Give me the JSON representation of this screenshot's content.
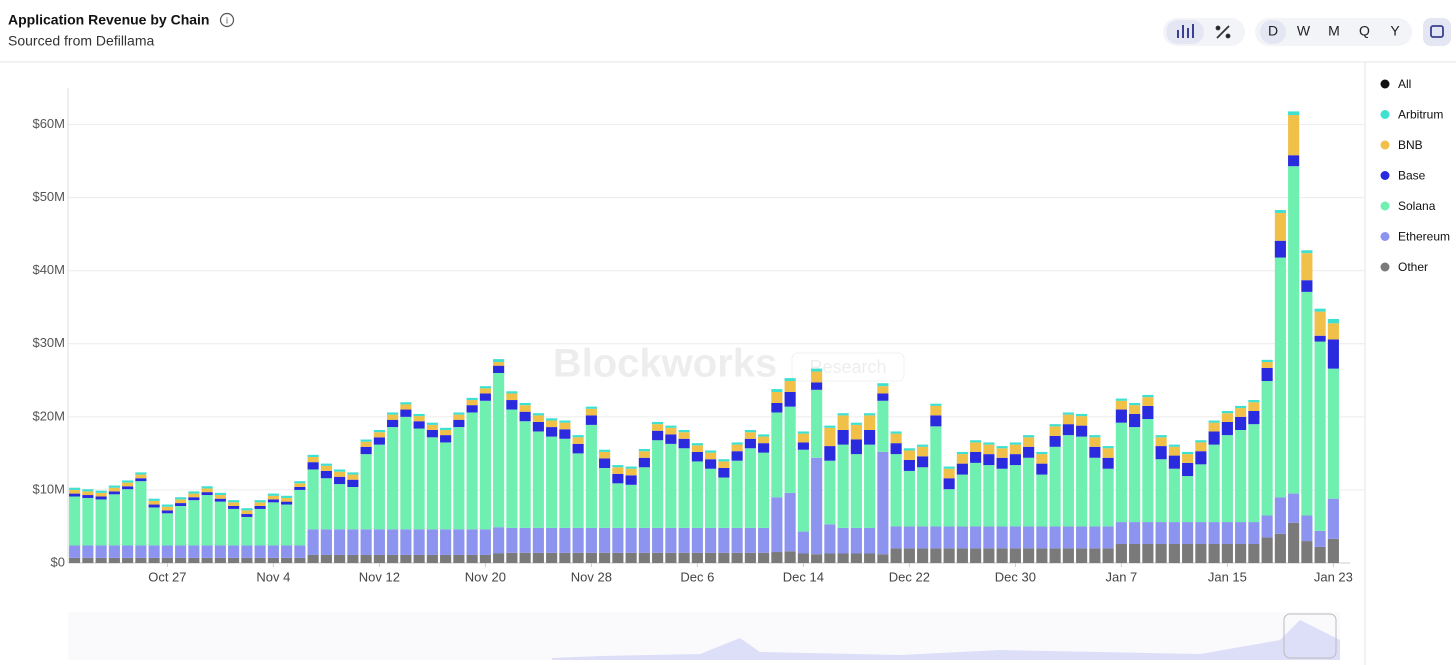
{
  "chart_data": {
    "type": "stacked_bar",
    "title": "Application Revenue by Chain",
    "subtitle": "Sourced from Defillama",
    "categories": [
      null,
      null,
      null,
      null,
      null,
      null,
      null,
      "Oct 27",
      null,
      null,
      null,
      null,
      null,
      null,
      null,
      "Nov 4",
      null,
      null,
      null,
      null,
      null,
      null,
      null,
      "Nov 12",
      null,
      null,
      null,
      null,
      null,
      null,
      null,
      "Nov 20",
      null,
      null,
      null,
      null,
      null,
      null,
      null,
      "Nov 28",
      null,
      null,
      null,
      null,
      null,
      null,
      null,
      "Dec 6",
      null,
      null,
      null,
      null,
      null,
      null,
      null,
      "Dec 14",
      null,
      null,
      null,
      null,
      null,
      null,
      null,
      "Dec 22",
      null,
      null,
      null,
      null,
      null,
      null,
      null,
      "Dec 30",
      null,
      null,
      null,
      null,
      null,
      null,
      null,
      "Jan 7",
      null,
      null,
      null,
      null,
      null,
      null,
      null,
      "Jan 15",
      null,
      null,
      null,
      null,
      null,
      null,
      null,
      "Jan 23"
    ],
    "legend_all_label": "All",
    "legend_all_color": "#111111",
    "series": [
      {
        "name": "Arbitrum",
        "color": "#3ee0d0",
        "values": [
          0.3,
          0.3,
          0.3,
          0.3,
          0.3,
          0.3,
          0.3,
          0.3,
          0.3,
          0.3,
          0.3,
          0.3,
          0.3,
          0.3,
          0.3,
          0.3,
          0.3,
          0.3,
          0.3,
          0.3,
          0.3,
          0.3,
          0.3,
          0.3,
          0.3,
          0.3,
          0.3,
          0.3,
          0.3,
          0.3,
          0.3,
          0.3,
          0.4,
          0.3,
          0.3,
          0.3,
          0.3,
          0.3,
          0.3,
          0.3,
          0.3,
          0.3,
          0.3,
          0.3,
          0.3,
          0.3,
          0.3,
          0.3,
          0.3,
          0.3,
          0.3,
          0.3,
          0.3,
          0.4,
          0.4,
          0.3,
          0.4,
          0.3,
          0.3,
          0.3,
          0.3,
          0.4,
          0.3,
          0.3,
          0.3,
          0.3,
          0.3,
          0.3,
          0.3,
          0.3,
          0.3,
          0.3,
          0.3,
          0.3,
          0.3,
          0.3,
          0.3,
          0.3,
          0.3,
          0.3,
          0.3,
          0.3,
          0.3,
          0.3,
          0.3,
          0.3,
          0.3,
          0.3,
          0.3,
          0.3,
          0.3,
          0.4,
          0.5,
          0.4,
          0.4,
          0.6
        ]
      },
      {
        "name": "BNB",
        "color": "#f0c048",
        "values": [
          0.5,
          0.5,
          0.5,
          0.5,
          0.5,
          0.5,
          0.5,
          0.5,
          0.5,
          0.5,
          0.5,
          0.5,
          0.5,
          0.5,
          0.5,
          0.5,
          0.5,
          0.5,
          0.7,
          0.7,
          0.7,
          0.7,
          0.7,
          0.7,
          0.7,
          0.7,
          0.7,
          0.7,
          0.7,
          0.7,
          0.7,
          0.7,
          0.5,
          0.9,
          0.9,
          0.9,
          0.9,
          0.9,
          0.9,
          0.9,
          0.9,
          0.9,
          0.9,
          0.9,
          0.9,
          0.9,
          0.9,
          0.9,
          0.9,
          0.9,
          0.9,
          0.9,
          0.9,
          1.5,
          1.5,
          1.2,
          1.5,
          2.5,
          2.0,
          2.0,
          2.0,
          1.0,
          1.3,
          1.3,
          1.3,
          1.3,
          1.3,
          1.3,
          1.3,
          1.3,
          1.3,
          1.3,
          1.3,
          1.3,
          1.3,
          1.3,
          1.3,
          1.3,
          1.3,
          1.2,
          1.2,
          1.2,
          1.2,
          1.2,
          1.2,
          1.2,
          1.2,
          1.2,
          1.2,
          1.2,
          0.8,
          3.8,
          5.5,
          3.7,
          3.3,
          2.2
        ]
      },
      {
        "name": "Base",
        "color": "#2a2ade",
        "values": [
          0.4,
          0.4,
          0.4,
          0.4,
          0.4,
          0.4,
          0.4,
          0.4,
          0.4,
          0.4,
          0.4,
          0.4,
          0.4,
          0.4,
          0.4,
          0.4,
          0.4,
          0.4,
          1.0,
          1.0,
          1.0,
          1.0,
          1.0,
          1.0,
          1.0,
          1.0,
          1.0,
          1.0,
          1.0,
          1.0,
          1.0,
          1.0,
          1.0,
          1.3,
          1.3,
          1.3,
          1.3,
          1.3,
          1.3,
          1.3,
          1.3,
          1.3,
          1.3,
          1.3,
          1.3,
          1.3,
          1.3,
          1.3,
          1.3,
          1.3,
          1.3,
          1.3,
          1.3,
          1.3,
          2.0,
          1.0,
          1.0,
          2.0,
          2.0,
          2.0,
          2.0,
          1.0,
          1.5,
          1.5,
          1.5,
          1.5,
          1.5,
          1.5,
          1.5,
          1.5,
          1.5,
          1.5,
          1.5,
          1.5,
          1.5,
          1.5,
          1.5,
          1.5,
          1.5,
          1.8,
          1.8,
          1.8,
          1.8,
          1.8,
          1.8,
          1.8,
          1.8,
          1.8,
          1.8,
          1.8,
          1.8,
          2.3,
          1.5,
          1.6,
          0.8,
          4.0
        ]
      },
      {
        "name": "Solana",
        "color": "#6ff0b0",
        "values": [
          6.7,
          6.5,
          6.3,
          7.0,
          7.7,
          8.8,
          5.2,
          4.4,
          5.4,
          6.2,
          6.9,
          6.0,
          5.0,
          3.9,
          5.0,
          5.9,
          5.6,
          7.6,
          8.2,
          7.0,
          6.2,
          5.8,
          10.3,
          11.6,
          14.0,
          15.4,
          13.8,
          12.6,
          11.9,
          14.0,
          16.0,
          17.6,
          21.1,
          16.2,
          14.6,
          13.2,
          12.5,
          12.2,
          10.2,
          14.1,
          8.2,
          6.1,
          5.9,
          8.3,
          12.0,
          11.5,
          10.9,
          9.1,
          8.1,
          6.9,
          9.2,
          10.9,
          10.3,
          11.6,
          11.8,
          11.2,
          9.3,
          8.7,
          11.4,
          10.1,
          11.4,
          7.0,
          9.9,
          7.6,
          8.1,
          13.7,
          5.1,
          7.1,
          8.7,
          8.4,
          7.9,
          8.4,
          9.4,
          7.1,
          10.9,
          12.5,
          12.3,
          9.4,
          7.9,
          13.6,
          13.0,
          14.1,
          8.6,
          7.3,
          6.3,
          7.9,
          10.6,
          11.9,
          12.6,
          13.4,
          18.4,
          32.8,
          44.8,
          30.6,
          25.9,
          17.8
        ]
      },
      {
        "name": "Ethereum",
        "color": "#8c94f0",
        "values": [
          1.7,
          1.7,
          1.7,
          1.7,
          1.7,
          1.7,
          1.7,
          1.7,
          1.7,
          1.7,
          1.7,
          1.7,
          1.7,
          1.7,
          1.7,
          1.7,
          1.7,
          1.7,
          3.5,
          3.5,
          3.5,
          3.5,
          3.5,
          3.5,
          3.5,
          3.5,
          3.5,
          3.5,
          3.5,
          3.5,
          3.5,
          3.5,
          3.6,
          3.4,
          3.4,
          3.4,
          3.4,
          3.4,
          3.4,
          3.4,
          3.4,
          3.4,
          3.4,
          3.4,
          3.4,
          3.4,
          3.4,
          3.4,
          3.4,
          3.4,
          3.4,
          3.4,
          3.4,
          7.5,
          8.0,
          3.0,
          13.2,
          4.0,
          3.5,
          3.5,
          3.5,
          14.0,
          3.0,
          3.0,
          3.0,
          3.0,
          3.0,
          3.0,
          3.0,
          3.0,
          3.0,
          3.0,
          3.0,
          3.0,
          3.0,
          3.0,
          3.0,
          3.0,
          3.0,
          3.0,
          3.0,
          3.0,
          3.0,
          3.0,
          3.0,
          3.0,
          3.0,
          3.0,
          3.0,
          3.0,
          3.0,
          5.0,
          4.0,
          3.5,
          2.2,
          5.5
        ]
      },
      {
        "name": "Other",
        "color": "#7a7a7a",
        "values": [
          0.7,
          0.7,
          0.7,
          0.7,
          0.7,
          0.7,
          0.7,
          0.7,
          0.7,
          0.7,
          0.7,
          0.7,
          0.7,
          0.7,
          0.7,
          0.7,
          0.7,
          0.7,
          1.1,
          1.1,
          1.1,
          1.1,
          1.1,
          1.1,
          1.1,
          1.1,
          1.1,
          1.1,
          1.1,
          1.1,
          1.1,
          1.1,
          1.3,
          1.4,
          1.4,
          1.4,
          1.4,
          1.4,
          1.4,
          1.4,
          1.4,
          1.4,
          1.4,
          1.4,
          1.4,
          1.4,
          1.4,
          1.4,
          1.4,
          1.4,
          1.4,
          1.4,
          1.4,
          1.5,
          1.6,
          1.3,
          1.2,
          1.3,
          1.3,
          1.3,
          1.3,
          1.2,
          2.0,
          2.0,
          2.0,
          2.0,
          2.0,
          2.0,
          2.0,
          2.0,
          2.0,
          2.0,
          2.0,
          2.0,
          2.0,
          2.0,
          2.0,
          2.0,
          2.0,
          2.6,
          2.6,
          2.6,
          2.6,
          2.6,
          2.6,
          2.6,
          2.6,
          2.6,
          2.6,
          2.6,
          3.5,
          4.0,
          5.5,
          3.0,
          2.2,
          3.3
        ]
      }
    ],
    "ylim": [
      0,
      65
    ],
    "yticks": [
      {
        "value": 0,
        "label": "$0"
      },
      {
        "value": 10,
        "label": "$10M"
      },
      {
        "value": 20,
        "label": "$20M"
      },
      {
        "value": 30,
        "label": "$30M"
      },
      {
        "value": 40,
        "label": "$40M"
      },
      {
        "value": 50,
        "label": "$50M"
      },
      {
        "value": 60,
        "label": "$60M"
      }
    ],
    "grid": true
  },
  "controls": {
    "intervals": [
      "D",
      "W",
      "M",
      "Q",
      "Y"
    ]
  },
  "watermark": {
    "brand": "Blockworks",
    "tag": "Research"
  }
}
